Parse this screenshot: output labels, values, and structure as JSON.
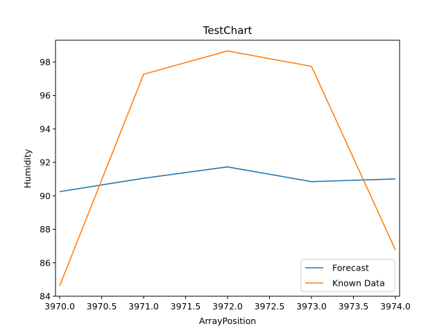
{
  "chart_data": {
    "type": "line",
    "title": "TestChart",
    "xlabel": "ArrayPosition",
    "ylabel": "Humidity",
    "xlim": [
      3969.95,
      3974.05
    ],
    "ylim": [
      84.0,
      99.3
    ],
    "xticks": [
      3970.0,
      3970.5,
      3971.0,
      3971.5,
      3972.0,
      3972.5,
      3973.0,
      3973.5,
      3974.0
    ],
    "xtick_labels": [
      "3970.0",
      "3970.5",
      "3971.0",
      "3971.5",
      "3972.0",
      "3972.5",
      "3973.0",
      "3973.5",
      "3974.0"
    ],
    "yticks": [
      84,
      86,
      88,
      90,
      92,
      94,
      96,
      98
    ],
    "ytick_labels": [
      "84",
      "86",
      "88",
      "90",
      "92",
      "94",
      "96",
      "98"
    ],
    "x": [
      3970,
      3971,
      3972,
      3973,
      3974
    ],
    "series": [
      {
        "name": "Forecast",
        "color": "#1f77b4",
        "values": [
          90.25,
          91.05,
          91.73,
          90.85,
          91.01
        ]
      },
      {
        "name": "Known Data",
        "color": "#ff7f0e",
        "values": [
          84.62,
          97.27,
          98.66,
          97.74,
          86.77
        ]
      }
    ],
    "legend_position": "lower-right",
    "grid": false
  }
}
